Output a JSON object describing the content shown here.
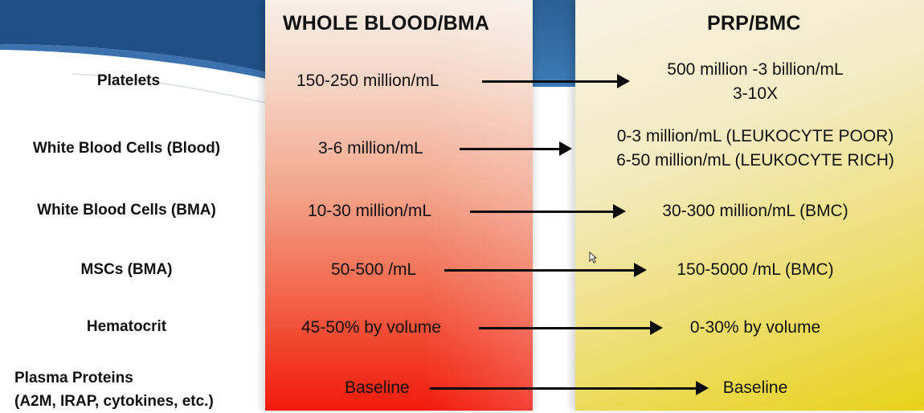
{
  "headers": {
    "whole": "WHOLE BLOOD/BMA",
    "prp": "PRP/BMC"
  },
  "rows": [
    {
      "label": "Platelets",
      "whole": "150-250 million/mL",
      "prp": [
        "500 million -3 billion/mL",
        "3-10X"
      ]
    },
    {
      "label": "White Blood Cells (Blood)",
      "whole": "3-6 million/mL",
      "prp": [
        "0-3 million/mL (LEUKOCYTE POOR)",
        "6-50 million/mL (LEUKOCYTE RICH)"
      ]
    },
    {
      "label": "White Blood Cells (BMA)",
      "whole": "10-30 million/mL",
      "prp": [
        "30-300 million/mL (BMC)"
      ]
    },
    {
      "label": "MSCs (BMA)",
      "whole": "50-500 /mL",
      "prp": [
        "150-5000 /mL (BMC)"
      ]
    },
    {
      "label": "Hematocrit",
      "whole": "45-50% by volume",
      "prp": [
        "0-30% by volume"
      ]
    },
    {
      "label": [
        "Plasma Proteins",
        "(A2M, IRAP, cytokines, etc.)"
      ],
      "whole": "Baseline",
      "prp": [
        "Baseline"
      ]
    }
  ],
  "colors": {
    "whole_top": "#f7efe7",
    "whole_bottom": "#f21a0a",
    "prp_top": "#f7f1e4",
    "prp_bottom": "#e8d21a",
    "blue_band": "#2b5f95"
  }
}
